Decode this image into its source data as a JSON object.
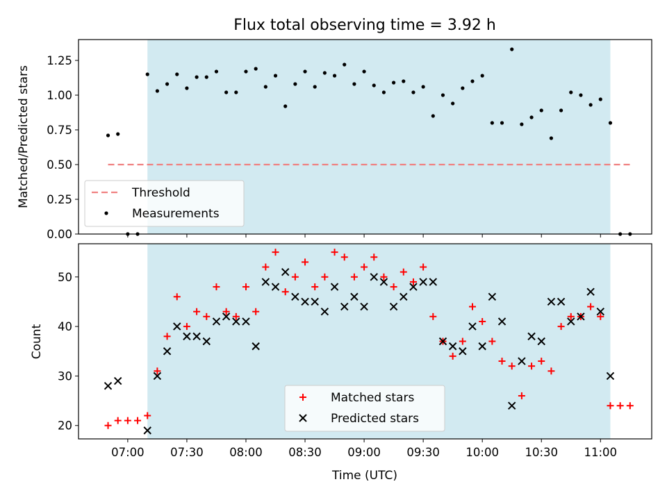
{
  "title": "Flux total observing time = 3.92 h",
  "colors": {
    "threshold": "#f08080",
    "measurement": "#000000",
    "matched": "#ff0000",
    "predicted": "#000000",
    "shade": "#add8e6"
  },
  "chart_data": [
    {
      "type": "scatter",
      "ylabel": "Matched/Predicted stars",
      "ylim": [
        0,
        1.4
      ],
      "yticks": [
        "0.00",
        "0.25",
        "0.50",
        "0.75",
        "1.00",
        "1.25"
      ],
      "xlim": [
        "06:35",
        "11:26"
      ],
      "shaded_interval": [
        "07:10",
        "11:05"
      ],
      "threshold": {
        "value": 0.5,
        "x_range": [
          "06:50",
          "11:15"
        ]
      },
      "legend": {
        "position": "lower-left",
        "entries": [
          "Threshold",
          "Measurements"
        ]
      },
      "series": [
        {
          "name": "Measurements",
          "x": [
            "06:50",
            "06:55",
            "07:00",
            "07:05",
            "07:10",
            "07:15",
            "07:20",
            "07:25",
            "07:30",
            "07:35",
            "07:40",
            "07:45",
            "07:50",
            "07:55",
            "08:00",
            "08:05",
            "08:10",
            "08:15",
            "08:20",
            "08:25",
            "08:30",
            "08:35",
            "08:40",
            "08:45",
            "08:50",
            "08:55",
            "09:00",
            "09:05",
            "09:10",
            "09:15",
            "09:20",
            "09:25",
            "09:30",
            "09:35",
            "09:40",
            "09:45",
            "09:50",
            "09:55",
            "10:00",
            "10:05",
            "10:10",
            "10:15",
            "10:20",
            "10:25",
            "10:30",
            "10:35",
            "10:40",
            "10:45",
            "10:50",
            "10:55",
            "11:00",
            "11:05",
            "11:10",
            "11:15"
          ],
          "y": [
            0.71,
            0.72,
            0.0,
            0.0,
            1.15,
            1.03,
            1.08,
            1.15,
            1.05,
            1.13,
            1.13,
            1.17,
            1.02,
            1.02,
            1.17,
            1.19,
            1.06,
            1.14,
            0.92,
            1.08,
            1.17,
            1.06,
            1.16,
            1.14,
            1.22,
            1.08,
            1.17,
            1.07,
            1.02,
            1.09,
            1.1,
            1.02,
            1.06,
            0.85,
            1.0,
            0.94,
            1.05,
            1.1,
            1.14,
            0.8,
            0.8,
            1.33,
            0.79,
            0.84,
            0.89,
            0.69,
            0.89,
            1.02,
            1.0,
            0.93,
            0.97,
            0.8,
            0.0,
            0.0
          ]
        }
      ]
    },
    {
      "type": "scatter",
      "xlabel": "Time (UTC)",
      "ylabel": "Count",
      "ylim": [
        17.3,
        56.7
      ],
      "yticks": [
        "20",
        "30",
        "40",
        "50"
      ],
      "xticks": [
        "07:00",
        "07:30",
        "08:00",
        "08:30",
        "09:00",
        "09:30",
        "10:00",
        "10:30",
        "11:00"
      ],
      "xlim": [
        "06:35",
        "11:26"
      ],
      "shaded_interval": [
        "07:10",
        "11:05"
      ],
      "legend": {
        "position": "lower-center",
        "entries": [
          "Matched stars",
          "Predicted stars"
        ]
      },
      "series": [
        {
          "name": "Matched stars",
          "x": [
            "06:50",
            "06:55",
            "07:00",
            "07:05",
            "07:10",
            "07:15",
            "07:20",
            "07:25",
            "07:30",
            "07:35",
            "07:40",
            "07:45",
            "07:50",
            "07:55",
            "08:00",
            "08:05",
            "08:10",
            "08:15",
            "08:20",
            "08:25",
            "08:30",
            "08:35",
            "08:40",
            "08:45",
            "08:50",
            "08:55",
            "09:00",
            "09:05",
            "09:10",
            "09:15",
            "09:20",
            "09:25",
            "09:30",
            "09:35",
            "09:40",
            "09:45",
            "09:50",
            "09:55",
            "10:00",
            "10:05",
            "10:10",
            "10:15",
            "10:20",
            "10:25",
            "10:30",
            "10:35",
            "10:40",
            "10:45",
            "10:50",
            "10:55",
            "11:00",
            "11:05",
            "11:10",
            "11:15"
          ],
          "y": [
            20,
            21,
            21,
            21,
            22,
            31,
            38,
            46,
            40,
            43,
            42,
            48,
            43,
            42,
            48,
            43,
            52,
            55,
            47,
            50,
            53,
            48,
            50,
            55,
            54,
            50,
            52,
            54,
            50,
            48,
            51,
            49,
            52,
            42,
            37,
            34,
            37,
            44,
            41,
            37,
            33,
            32,
            26,
            32,
            33,
            31,
            40,
            42,
            42,
            44,
            42,
            24,
            24,
            24
          ]
        },
        {
          "name": "Predicted stars",
          "x": [
            "06:50",
            "06:55",
            "07:10",
            "07:15",
            "07:20",
            "07:25",
            "07:30",
            "07:35",
            "07:40",
            "07:45",
            "07:50",
            "07:55",
            "08:00",
            "08:05",
            "08:10",
            "08:15",
            "08:20",
            "08:25",
            "08:30",
            "08:35",
            "08:40",
            "08:45",
            "08:50",
            "08:55",
            "09:00",
            "09:05",
            "09:10",
            "09:15",
            "09:20",
            "09:25",
            "09:30",
            "09:35",
            "09:40",
            "09:45",
            "09:50",
            "09:55",
            "10:00",
            "10:05",
            "10:10",
            "10:15",
            "10:20",
            "10:25",
            "10:30",
            "10:35",
            "10:40",
            "10:45",
            "10:50",
            "10:55",
            "11:00",
            "11:05"
          ],
          "y": [
            28,
            29,
            19,
            30,
            35,
            40,
            38,
            38,
            37,
            41,
            42,
            41,
            41,
            36,
            49,
            48,
            51,
            46,
            45,
            45,
            43,
            48,
            44,
            46,
            44,
            50,
            49,
            44,
            46,
            48,
            49,
            49,
            37,
            36,
            35,
            40,
            36,
            46,
            41,
            24,
            33,
            38,
            37,
            45,
            45,
            41,
            42,
            47,
            43,
            30
          ]
        }
      ]
    }
  ]
}
